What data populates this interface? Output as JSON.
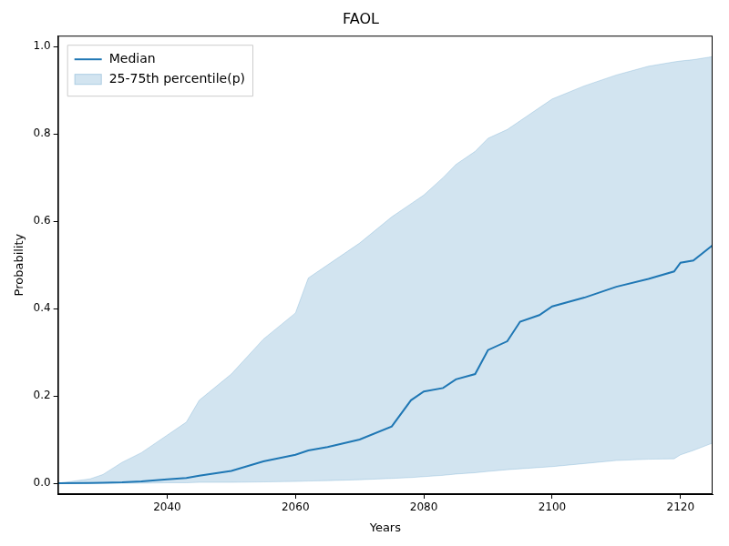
{
  "chart_data": {
    "type": "line",
    "title": "FAOL",
    "x_label": "Years",
    "y_label": "Probability",
    "x": [
      2023,
      2028,
      2030,
      2033,
      2036,
      2040,
      2043,
      2045,
      2050,
      2055,
      2060,
      2062,
      2065,
      2070,
      2075,
      2078,
      2080,
      2083,
      2085,
      2088,
      2090,
      2093,
      2095,
      2098,
      2100,
      2105,
      2110,
      2115,
      2119,
      2120,
      2122,
      2125
    ],
    "series": [
      {
        "name": "Median",
        "type": "line",
        "color": "#1f77b4",
        "values": [
          0,
          0.0005,
          0.001,
          0.002,
          0.004,
          0.009,
          0.012,
          0.017,
          0.028,
          0.05,
          0.065,
          0.075,
          0.083,
          0.1,
          0.13,
          0.19,
          0.21,
          0.218,
          0.238,
          0.25,
          0.305,
          0.325,
          0.37,
          0.385,
          0.405,
          0.425,
          0.45,
          0.468,
          0.485,
          0.505,
          0.51,
          0.545
        ]
      },
      {
        "name": "25-75th percentile(p)",
        "type": "band",
        "color": "#1f77b4",
        "lower": [
          0,
          0,
          0,
          0,
          0,
          0.001,
          0.001,
          0.002,
          0.002,
          0.003,
          0.004,
          0.005,
          0.006,
          0.008,
          0.011,
          0.013,
          0.015,
          0.018,
          0.021,
          0.024,
          0.027,
          0.031,
          0.033,
          0.036,
          0.038,
          0.045,
          0.052,
          0.055,
          0.056,
          0.065,
          0.075,
          0.092
        ],
        "upper": [
          0,
          0.01,
          0.02,
          0.048,
          0.07,
          0.11,
          0.14,
          0.19,
          0.25,
          0.33,
          0.39,
          0.47,
          0.5,
          0.55,
          0.61,
          0.64,
          0.66,
          0.7,
          0.73,
          0.76,
          0.79,
          0.81,
          0.83,
          0.86,
          0.88,
          0.91,
          0.935,
          0.955,
          0.965,
          0.967,
          0.97,
          0.977
        ]
      }
    ],
    "xlim": [
      2023,
      2125
    ],
    "xticks": [
      2040,
      2060,
      2080,
      2100,
      2120
    ],
    "ylim": [
      -0.025,
      1.025
    ],
    "yticks": [
      {
        "value": 0,
        "label": "0.0"
      },
      {
        "value": 0.2,
        "label": "0.2"
      },
      {
        "value": 0.4,
        "label": "0.4"
      },
      {
        "value": 0.6,
        "label": "0.6"
      },
      {
        "value": 0.8,
        "label": "0.8"
      },
      {
        "value": 1.0,
        "label": "1.0"
      }
    ],
    "grid": false,
    "legend": "upper left"
  }
}
